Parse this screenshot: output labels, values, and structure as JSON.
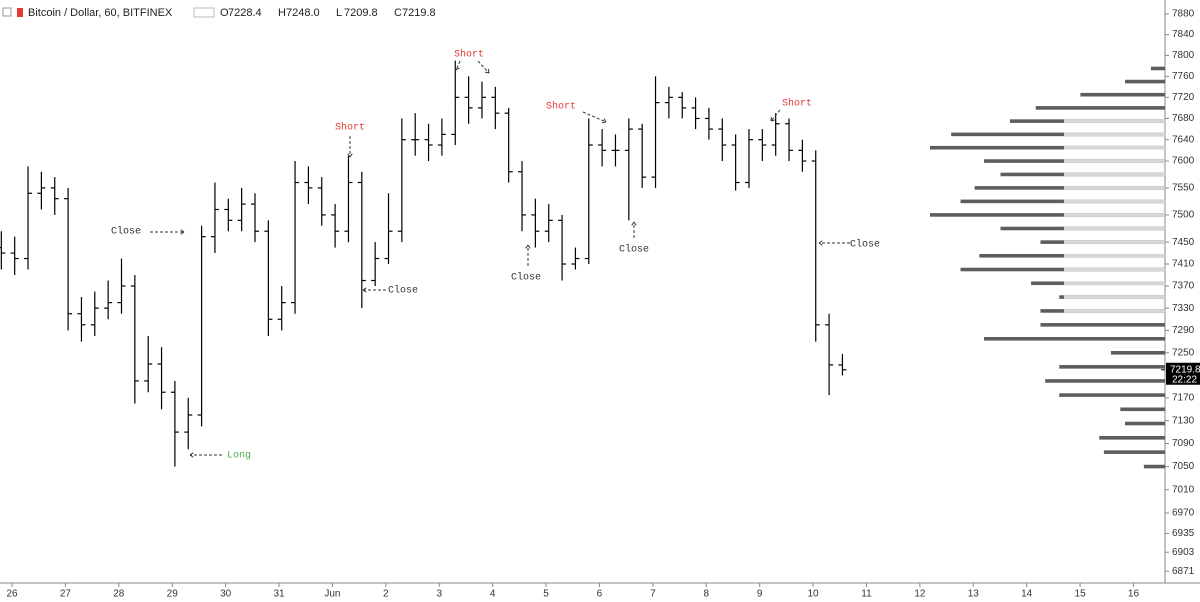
{
  "header": {
    "symbol": "Bitcoin / Dollar, 60, BITFINEX",
    "ohlc": [
      {
        "label": "O",
        "value": "7228.4"
      },
      {
        "label": "H",
        "value": "7248.0"
      },
      {
        "label": "L",
        "value": "7209.8"
      },
      {
        "label": "C",
        "value": "7219.8"
      }
    ]
  },
  "chart_data": {
    "type": "ohlc",
    "color": "#000000",
    "x": [
      -0.2,
      0.05,
      0.3,
      0.55,
      0.8,
      1.05,
      1.3,
      1.55,
      1.8,
      2.05,
      2.3,
      2.55,
      2.8,
      3.05,
      3.3,
      3.55,
      3.8,
      4.05,
      4.3,
      4.55,
      4.8,
      5.05,
      5.3,
      5.55,
      5.8,
      6.05,
      6.3,
      6.55,
      6.8,
      7.05,
      7.3,
      7.55,
      7.8,
      8.05,
      8.3,
      8.55,
      8.8,
      9.05,
      9.3,
      9.55,
      9.8,
      10.05,
      10.3,
      10.55,
      10.8,
      11.05,
      11.3,
      11.55,
      11.8,
      12.05,
      12.3,
      12.55,
      12.8,
      13.05,
      13.3,
      13.55,
      13.8,
      14.05,
      14.3,
      14.55,
      14.8,
      15.05,
      15.3,
      15.55
    ],
    "open": [
      7440,
      7430,
      7420,
      7540,
      7550,
      7530,
      7320,
      7300,
      7330,
      7340,
      7370,
      7200,
      7230,
      7180,
      7110,
      7140,
      7460,
      7510,
      7490,
      7520,
      7470,
      7310,
      7340,
      7560,
      7550,
      7500,
      7470,
      7560,
      7380,
      7420,
      7470,
      7640,
      7640,
      7630,
      7650,
      7720,
      7700,
      7720,
      7690,
      7580,
      7500,
      7470,
      7490,
      7410,
      7420,
      7630,
      7620,
      7620,
      7660,
      7570,
      7710,
      7720,
      7700,
      7680,
      7660,
      7630,
      7560,
      7640,
      7630,
      7670,
      7620,
      7600,
      7300,
      7228.4
    ],
    "high": [
      7470,
      7460,
      7590,
      7580,
      7570,
      7550,
      7350,
      7360,
      7380,
      7420,
      7390,
      7280,
      7260,
      7200,
      7170,
      7480,
      7560,
      7530,
      7550,
      7540,
      7490,
      7370,
      7600,
      7590,
      7570,
      7520,
      7610,
      7580,
      7450,
      7540,
      7680,
      7690,
      7670,
      7680,
      7790,
      7760,
      7750,
      7740,
      7700,
      7600,
      7530,
      7520,
      7500,
      7440,
      7680,
      7660,
      7650,
      7680,
      7670,
      7760,
      7740,
      7730,
      7720,
      7700,
      7680,
      7650,
      7660,
      7660,
      7690,
      7680,
      7640,
      7620,
      7320,
      7248
    ],
    "low": [
      7400,
      7390,
      7400,
      7510,
      7500,
      7290,
      7270,
      7280,
      7310,
      7320,
      7160,
      7180,
      7150,
      7050,
      7080,
      7120,
      7430,
      7470,
      7470,
      7450,
      7280,
      7290,
      7320,
      7520,
      7480,
      7440,
      7450,
      7330,
      7370,
      7410,
      7450,
      7610,
      7600,
      7610,
      7630,
      7670,
      7680,
      7660,
      7560,
      7470,
      7440,
      7450,
      7380,
      7400,
      7410,
      7590,
      7590,
      7490,
      7550,
      7550,
      7680,
      7680,
      7660,
      7640,
      7600,
      7545,
      7550,
      7600,
      7610,
      7600,
      7580,
      7270,
      7175,
      7209.8
    ],
    "close": [
      7430,
      7420,
      7540,
      7550,
      7530,
      7320,
      7300,
      7330,
      7340,
      7370,
      7200,
      7230,
      7180,
      7110,
      7140,
      7460,
      7510,
      7490,
      7520,
      7470,
      7310,
      7340,
      7560,
      7550,
      7500,
      7470,
      7560,
      7380,
      7420,
      7470,
      7640,
      7640,
      7630,
      7650,
      7720,
      7700,
      7720,
      7690,
      7580,
      7500,
      7470,
      7490,
      7410,
      7420,
      7630,
      7620,
      7620,
      7660,
      7570,
      7710,
      7720,
      7700,
      7680,
      7660,
      7630,
      7560,
      7640,
      7630,
      7670,
      7620,
      7600,
      7300,
      7228.4,
      7219.8
    ],
    "xlim": [
      -0.225,
      21.59
    ],
    "ylim": [
      6851,
      7907
    ],
    "log_y": true,
    "grid": false,
    "xticks": [
      {
        "value": 0,
        "label": "26"
      },
      {
        "value": 1,
        "label": "27"
      },
      {
        "value": 2,
        "label": "28"
      },
      {
        "value": 3,
        "label": "29"
      },
      {
        "value": 4,
        "label": "30"
      },
      {
        "value": 5,
        "label": "31"
      },
      {
        "value": 6,
        "label": "Jun"
      },
      {
        "value": 7,
        "label": "2"
      },
      {
        "value": 8,
        "label": "3"
      },
      {
        "value": 9,
        "label": "4"
      },
      {
        "value": 10,
        "label": "5"
      },
      {
        "value": 11,
        "label": "6"
      },
      {
        "value": 12,
        "label": "7"
      },
      {
        "value": 13,
        "label": "8"
      },
      {
        "value": 14,
        "label": "9"
      },
      {
        "value": 15,
        "label": "10"
      },
      {
        "value": 16,
        "label": "11"
      },
      {
        "value": 17,
        "label": "12"
      },
      {
        "value": 18,
        "label": "13"
      },
      {
        "value": 19,
        "label": "14"
      },
      {
        "value": 20,
        "label": "15"
      },
      {
        "value": 21,
        "label": "16"
      }
    ],
    "yticks": [
      7880,
      7840,
      7800,
      7760,
      7720,
      7680,
      7640,
      7600,
      7550,
      7500,
      7450,
      7410,
      7370,
      7330,
      7290,
      7250,
      7170,
      7130,
      7090,
      7050,
      7010,
      6970,
      6935,
      6903,
      6871
    ],
    "last_price": 7219.8,
    "countdown": "22:22",
    "annotations": [
      {
        "text": "Close",
        "color": "#333333"
      },
      {
        "text": "Short",
        "color": "#e53935"
      },
      {
        "text": "Close",
        "color": "#333333"
      },
      {
        "text": "Short",
        "color": "#e53935"
      },
      {
        "text": "Close",
        "color": "#333333"
      },
      {
        "text": "Short",
        "color": "#e53935"
      },
      {
        "text": "Close",
        "color": "#333333"
      },
      {
        "text": "Short",
        "color": "#e53935"
      },
      {
        "text": "Close",
        "color": "#333333"
      },
      {
        "text": "Long",
        "color": "#4caf50"
      }
    ],
    "volume_profile": {
      "color": "#5d5d5d",
      "up_color": "#d6d6d6",
      "levels": [
        7775,
        7750,
        7725,
        7700,
        7675,
        7650,
        7625,
        7600,
        7575,
        7550,
        7525,
        7500,
        7475,
        7450,
        7425,
        7400,
        7375,
        7350,
        7325,
        7300,
        7275,
        7250,
        7225,
        7200,
        7175,
        7150,
        7125,
        7100,
        7075,
        7050
      ],
      "volume": [
        6,
        17,
        36,
        55,
        66,
        91,
        100,
        77,
        70,
        81,
        87,
        100,
        70,
        53,
        79,
        87,
        57,
        45,
        53,
        53,
        77,
        23,
        45,
        51,
        45,
        19,
        17,
        28,
        26,
        9
      ],
      "up_volume": [
        0,
        0,
        0,
        0,
        43,
        43,
        43,
        43,
        43,
        43,
        43,
        43,
        43,
        43,
        43,
        43,
        43,
        43,
        43,
        0,
        0,
        0,
        0,
        0,
        0,
        0,
        0,
        0,
        0,
        0
      ]
    }
  }
}
